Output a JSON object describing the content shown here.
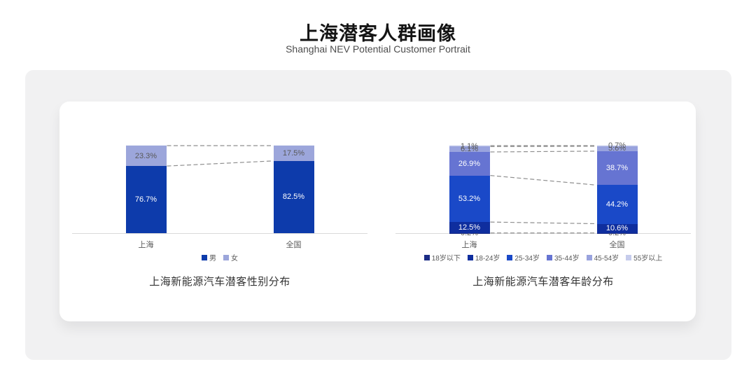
{
  "header": {
    "title": "上海潜客人群画像",
    "subtitle": "Shanghai NEV Potential Customer Portrait"
  },
  "chart_data": [
    {
      "type": "bar",
      "stacked": true,
      "title": "上海新能源汽车潜客性别分布",
      "categories": [
        "上海",
        "全国"
      ],
      "unit": "%",
      "ylim": [
        0,
        100
      ],
      "grid": false,
      "legend_position": "bottom",
      "connector_lines": "dashed",
      "series": [
        {
          "name": "男",
          "values": [
            76.7,
            82.5
          ],
          "color": "#0d3bab",
          "label_color": "#ffffff"
        },
        {
          "name": "女",
          "values": [
            23.3,
            17.5
          ],
          "color": "#9ca6db",
          "label_color": "#595959"
        }
      ]
    },
    {
      "type": "bar",
      "stacked": true,
      "title": "上海新能源汽车潜客年龄分布",
      "categories": [
        "上海",
        "全国"
      ],
      "unit": "%",
      "ylim": [
        0,
        100
      ],
      "grid": false,
      "legend_position": "bottom",
      "connector_lines": "dashed",
      "series": [
        {
          "name": "18岁以下",
          "values": [
            0.2,
            0.2
          ],
          "color": "#1b2c85",
          "label_color": "#595959"
        },
        {
          "name": "18-24岁",
          "values": [
            12.5,
            10.6
          ],
          "color": "#0f2e9e",
          "label_color": "#ffffff"
        },
        {
          "name": "25-34岁",
          "values": [
            53.2,
            44.2
          ],
          "color": "#1a49c8",
          "label_color": "#ffffff"
        },
        {
          "name": "35-44岁",
          "values": [
            26.9,
            38.7
          ],
          "color": "#6674d2",
          "label_color": "#ffffff"
        },
        {
          "name": "45-54岁",
          "values": [
            6.1,
            5.6
          ],
          "color": "#99a3de",
          "label_color": "#595959"
        },
        {
          "name": "55岁以上",
          "values": [
            1.1,
            0.7
          ],
          "color": "#c6ccec",
          "label_color": "#595959"
        }
      ]
    }
  ]
}
